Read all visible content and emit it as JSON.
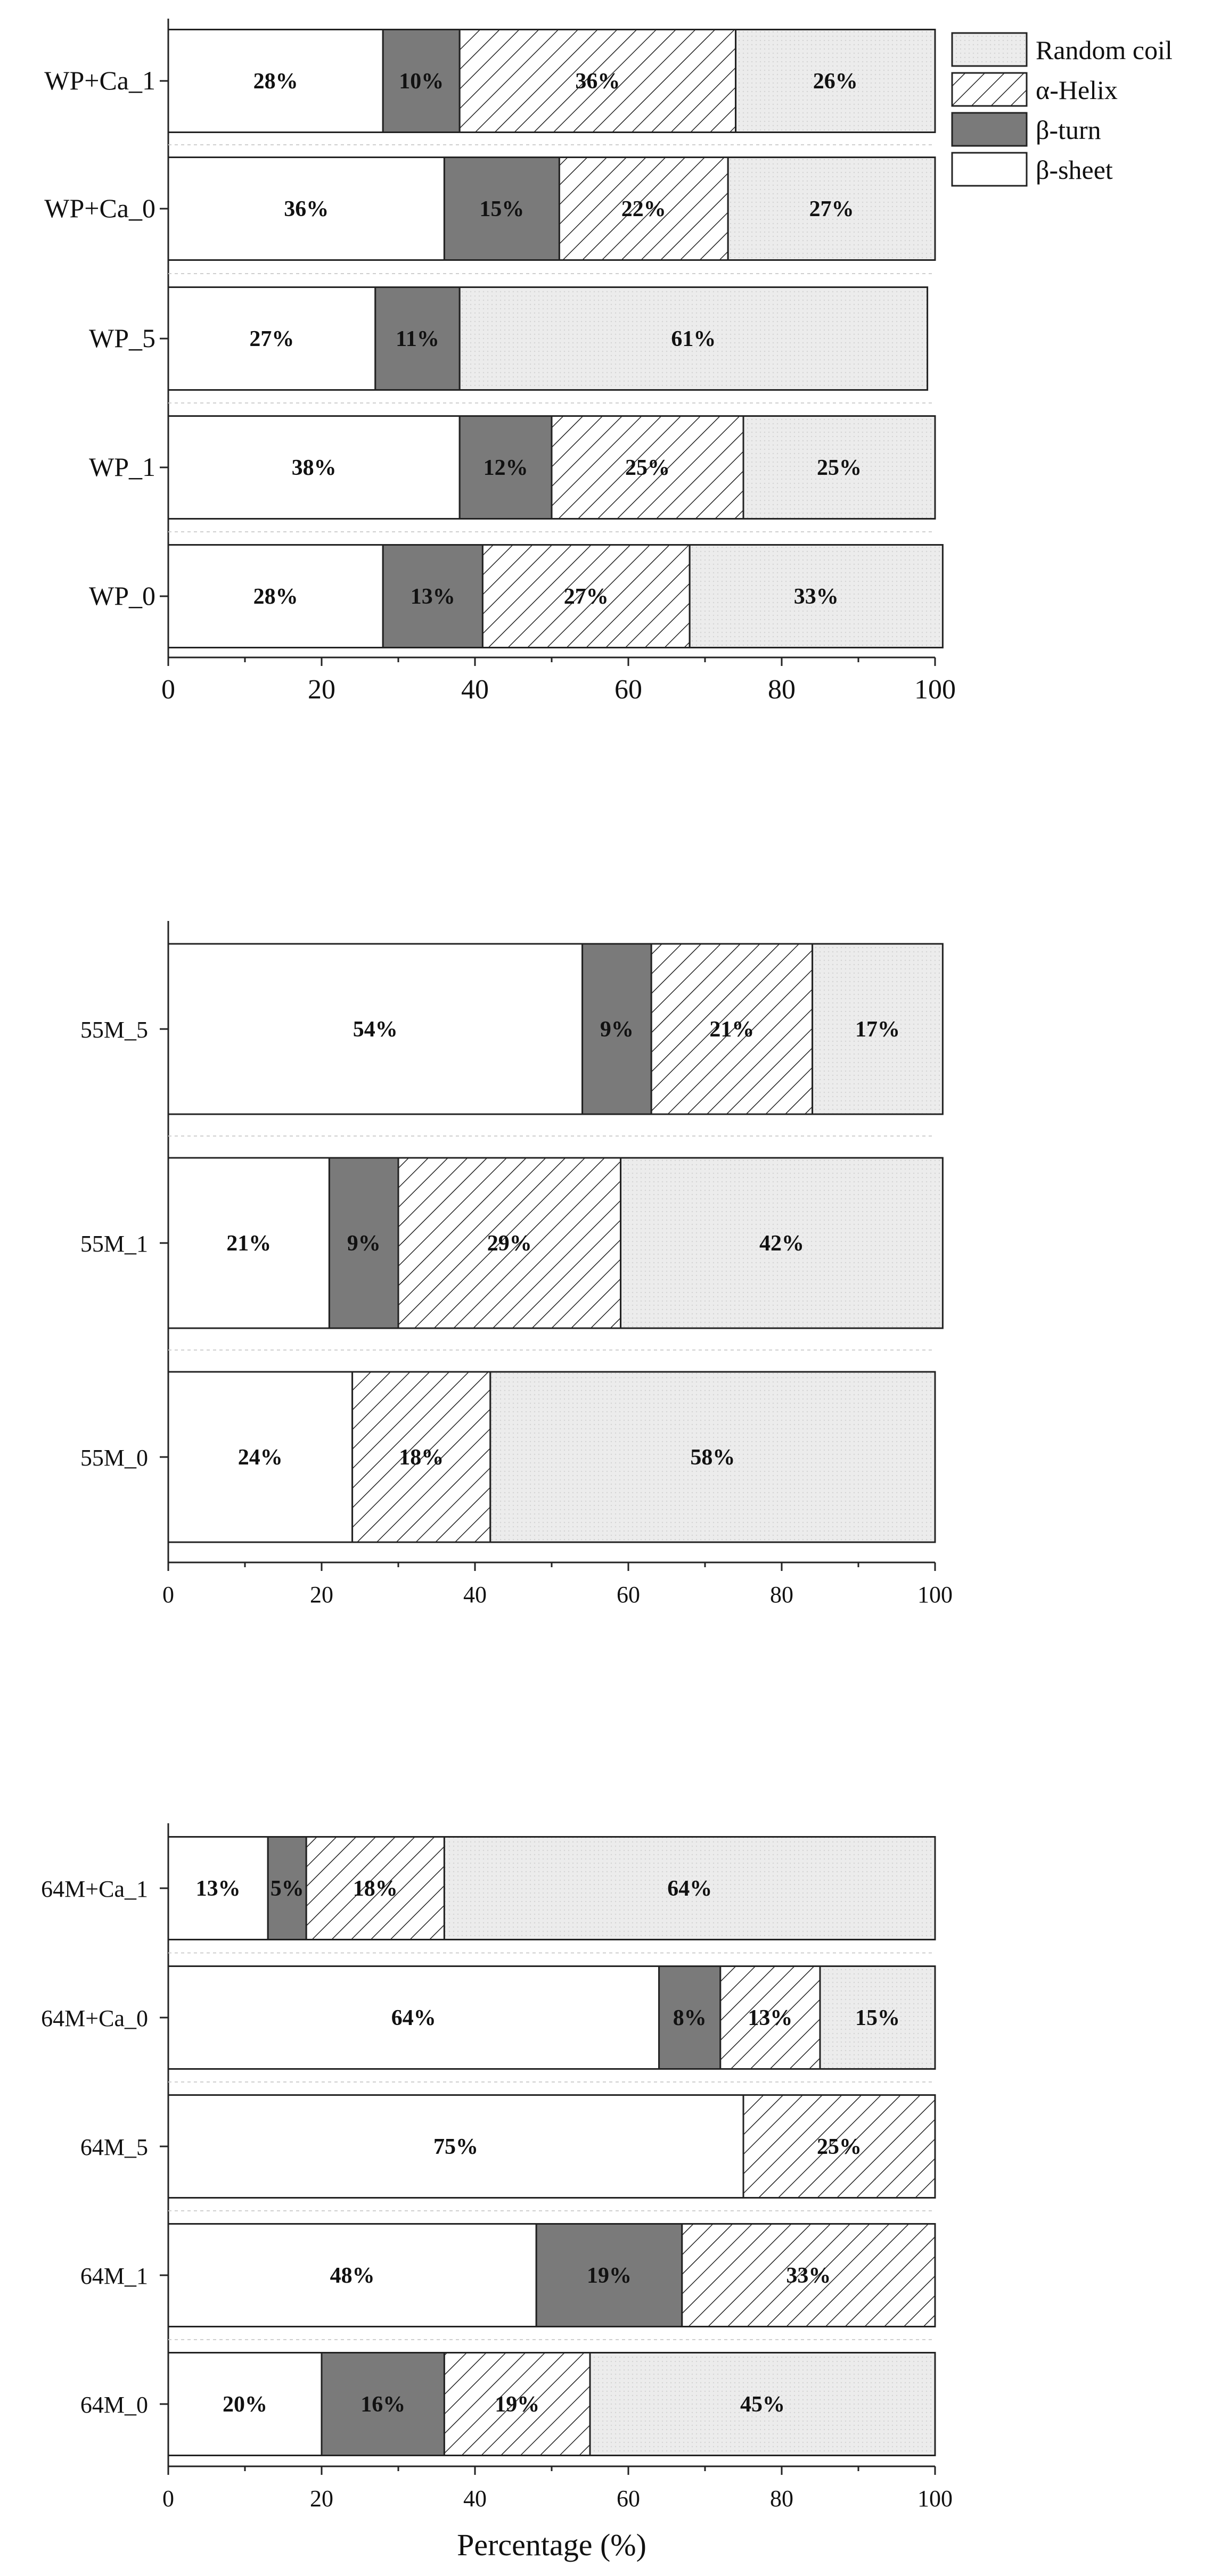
{
  "colors": {
    "beta_sheet": "#ffffff",
    "beta_turn": "#7a7a7a",
    "alpha_helix": "#ffffff",
    "random_coil": "#ebebeb",
    "stroke": "#222222"
  },
  "legend": {
    "random_coil": "Random coil",
    "alpha_helix": "α-Helix",
    "beta_turn": "β-turn",
    "beta_sheet": "β-sheet"
  },
  "chart_data": [
    {
      "type": "bar",
      "orientation": "horizontal",
      "stacked": true,
      "xlim": [
        0,
        100
      ],
      "xticks": [
        "0",
        "20",
        "40",
        "60",
        "80",
        "100"
      ],
      "xlabel": "",
      "categories": [
        "WP+Ca_1",
        "WP+Ca_0",
        "WP_5",
        "WP_1",
        "WP_0"
      ],
      "series": [
        {
          "name": "β-sheet",
          "key": "beta_sheet",
          "values": [
            28,
            36,
            27,
            38,
            28
          ],
          "labels": [
            "28%",
            "36%",
            "27%",
            "38%",
            "28%"
          ]
        },
        {
          "name": "β-turn",
          "key": "beta_turn",
          "values": [
            10,
            15,
            11,
            12,
            13
          ],
          "labels": [
            "10%",
            "15%",
            "11%",
            "12%",
            "13%"
          ]
        },
        {
          "name": "α-Helix",
          "key": "alpha_helix",
          "values": [
            36,
            22,
            0,
            25,
            27
          ],
          "labels": [
            "36%",
            "22%",
            "",
            "25%",
            "27%"
          ]
        },
        {
          "name": "Random coil",
          "key": "random_coil",
          "values": [
            26,
            27,
            61,
            25,
            33
          ],
          "labels": [
            "26%",
            "27%",
            "61%",
            "25%",
            "33%"
          ]
        }
      ],
      "legend_position": "top-right"
    },
    {
      "type": "bar",
      "orientation": "horizontal",
      "stacked": true,
      "xlim": [
        0,
        100
      ],
      "xticks": [
        "0",
        "20",
        "40",
        "60",
        "80",
        "100"
      ],
      "xlabel": "",
      "categories": [
        "55M_5",
        "55M_1",
        "55M_0"
      ],
      "series": [
        {
          "name": "β-sheet",
          "key": "beta_sheet",
          "values": [
            54,
            21,
            24
          ],
          "labels": [
            "54%",
            "21%",
            "24%"
          ]
        },
        {
          "name": "β-turn",
          "key": "beta_turn",
          "values": [
            9,
            9,
            0
          ],
          "labels": [
            "9%",
            "9%",
            ""
          ]
        },
        {
          "name": "α-Helix",
          "key": "alpha_helix",
          "values": [
            21,
            29,
            18
          ],
          "labels": [
            "21%",
            "29%",
            "18%"
          ]
        },
        {
          "name": "Random coil",
          "key": "random_coil",
          "values": [
            17,
            42,
            58
          ],
          "labels": [
            "17%",
            "42%",
            "58%"
          ]
        }
      ]
    },
    {
      "type": "bar",
      "orientation": "horizontal",
      "stacked": true,
      "xlim": [
        0,
        100
      ],
      "xticks": [
        "0",
        "20",
        "40",
        "60",
        "80",
        "100"
      ],
      "xlabel": "Percentage (%)",
      "categories": [
        "64M+Ca_1",
        "64M+Ca_0",
        "64M_5",
        "64M_1",
        "64M_0"
      ],
      "series": [
        {
          "name": "β-sheet",
          "key": "beta_sheet",
          "values": [
            13,
            64,
            75,
            48,
            20
          ],
          "labels": [
            "13%",
            "64%",
            "75%",
            "48%",
            "20%"
          ]
        },
        {
          "name": "β-turn",
          "key": "beta_turn",
          "values": [
            5,
            8,
            0,
            19,
            16
          ],
          "labels": [
            "5%",
            "8%",
            "",
            "19%",
            "16%"
          ]
        },
        {
          "name": "α-Helix",
          "key": "alpha_helix",
          "values": [
            18,
            13,
            25,
            33,
            19
          ],
          "labels": [
            "18%",
            "13%",
            "25%",
            "33%",
            "19%"
          ]
        },
        {
          "name": "Random coil",
          "key": "random_coil",
          "values": [
            64,
            15,
            0,
            0,
            45
          ],
          "labels": [
            "64%",
            "15%",
            "",
            "",
            "45%"
          ]
        }
      ]
    }
  ]
}
